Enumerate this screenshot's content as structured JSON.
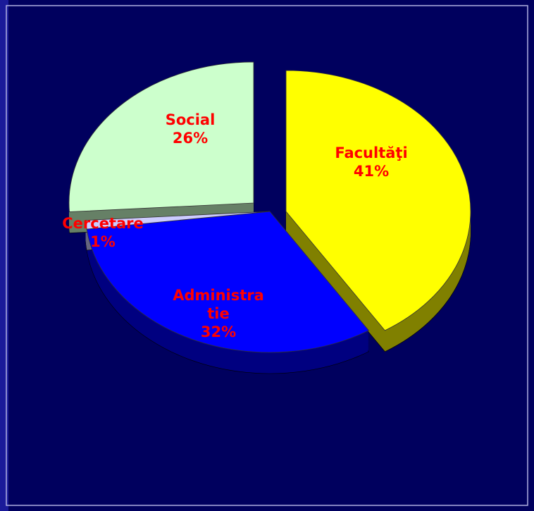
{
  "chart_data": {
    "type": "pie",
    "categories": [
      "Facultăţi",
      "Administratie",
      "Cercetare",
      "Social"
    ],
    "values": [
      41,
      32,
      1,
      26
    ],
    "value_labels": [
      "41%",
      "32%",
      "1%",
      "26%"
    ],
    "colors": [
      "#ffff00",
      "#0000ff",
      "#ccccff",
      "#ccffcc"
    ],
    "label_color": "#ff0000"
  }
}
